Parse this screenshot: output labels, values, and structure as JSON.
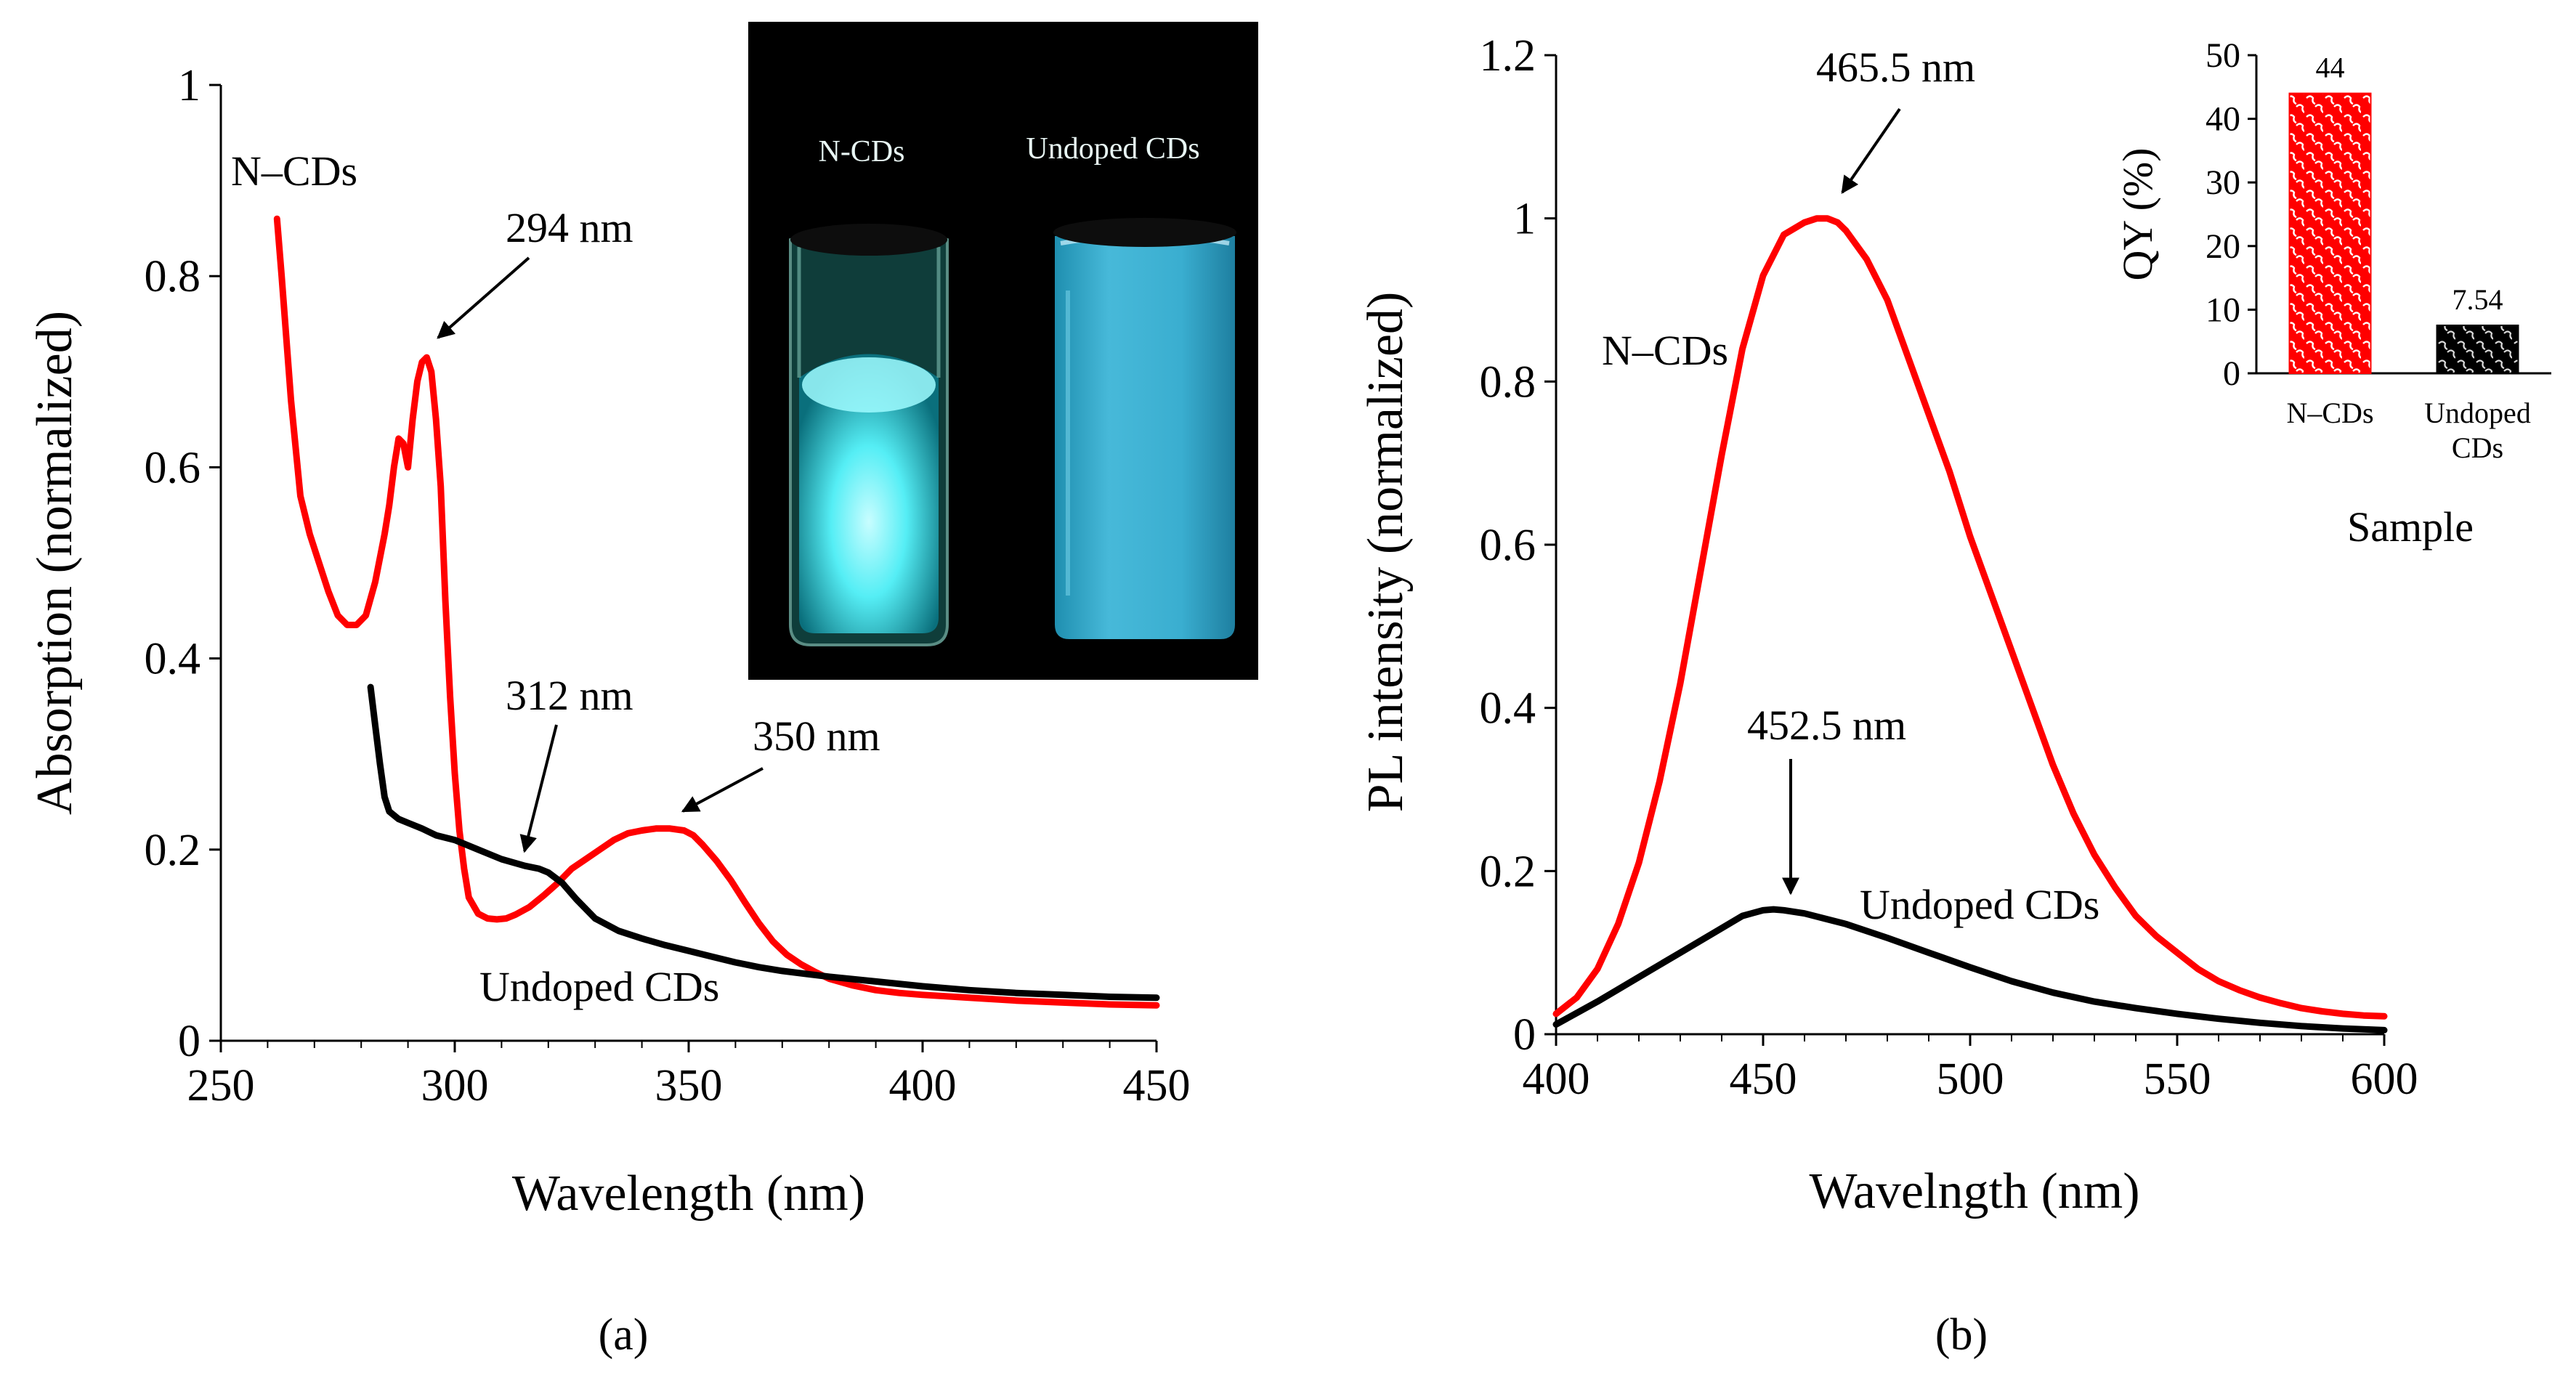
{
  "colors": {
    "ncds": "#ff0000",
    "undoped": "#000000",
    "vial_glow": "#3ee6f0",
    "vial_undoped": "#2aa8c8",
    "photo_bg": "#000000"
  },
  "chart_data": [
    {
      "panel": "a",
      "type": "line",
      "xlabel": "Wavelength (nm)",
      "ylabel": "Absorption (normalized)",
      "xlim": [
        250,
        450
      ],
      "ylim": [
        0,
        1
      ],
      "xticks": [
        250,
        300,
        350,
        400,
        450
      ],
      "yticks": [
        0,
        0.2,
        0.4,
        0.6,
        0.8,
        1
      ],
      "ytick_labels": [
        "0",
        "0.2",
        "0.4",
        "0.6",
        "0.8",
        "1"
      ],
      "grid": false,
      "series": [
        {
          "name": "N–CDs",
          "color": "#ff0000",
          "x": [
            262,
            263,
            265,
            267,
            269,
            271,
            273,
            275,
            277,
            279,
            281,
            283,
            285,
            286,
            287,
            288,
            289,
            290,
            291,
            292,
            293,
            294,
            295,
            296,
            297,
            298,
            299,
            300,
            301,
            302,
            303,
            305,
            307,
            309,
            311,
            313,
            316,
            319,
            322,
            325,
            328,
            331,
            334,
            337,
            340,
            343,
            346,
            349,
            351,
            353,
            356,
            359,
            362,
            365,
            368,
            371,
            374,
            377,
            380,
            385,
            390,
            395,
            400,
            410,
            420,
            430,
            440,
            450
          ],
          "y": [
            0.86,
            0.8,
            0.67,
            0.57,
            0.53,
            0.5,
            0.47,
            0.445,
            0.435,
            0.435,
            0.445,
            0.48,
            0.53,
            0.56,
            0.6,
            0.63,
            0.625,
            0.6,
            0.65,
            0.69,
            0.71,
            0.715,
            0.7,
            0.65,
            0.58,
            0.46,
            0.36,
            0.28,
            0.22,
            0.18,
            0.15,
            0.133,
            0.128,
            0.127,
            0.128,
            0.132,
            0.14,
            0.152,
            0.165,
            0.18,
            0.19,
            0.2,
            0.21,
            0.217,
            0.22,
            0.222,
            0.222,
            0.22,
            0.215,
            0.205,
            0.188,
            0.168,
            0.145,
            0.123,
            0.104,
            0.09,
            0.08,
            0.072,
            0.065,
            0.058,
            0.053,
            0.05,
            0.048,
            0.045,
            0.042,
            0.04,
            0.038,
            0.037
          ]
        },
        {
          "name": "Undoped CDs",
          "color": "#000000",
          "x": [
            282,
            283,
            284,
            285,
            286,
            288,
            290,
            293,
            296,
            300,
            305,
            310,
            315,
            318,
            320,
            323,
            326,
            330,
            335,
            340,
            345,
            350,
            355,
            360,
            365,
            370,
            375,
            380,
            390,
            400,
            410,
            420,
            430,
            440,
            450
          ],
          "y": [
            0.37,
            0.33,
            0.29,
            0.255,
            0.24,
            0.232,
            0.228,
            0.222,
            0.215,
            0.21,
            0.2,
            0.19,
            0.183,
            0.18,
            0.176,
            0.165,
            0.148,
            0.128,
            0.115,
            0.107,
            0.1,
            0.094,
            0.088,
            0.082,
            0.077,
            0.073,
            0.07,
            0.067,
            0.062,
            0.057,
            0.053,
            0.05,
            0.048,
            0.046,
            0.045
          ]
        }
      ],
      "series_labels": {
        "ncds": "N–CDs",
        "undoped": "Undoped CDs"
      },
      "annotations": [
        "294 nm",
        "312 nm",
        "350 nm"
      ],
      "inset_photo": {
        "labels": [
          "N-CDs",
          "Undoped CDs"
        ]
      },
      "caption": "(a)"
    },
    {
      "panel": "b",
      "type": "line",
      "xlabel": "Wavelngth (nm)",
      "ylabel": "PL intensity (normalized)",
      "xlim": [
        400,
        600
      ],
      "ylim": [
        0,
        1.2
      ],
      "xticks": [
        400,
        450,
        500,
        550,
        600
      ],
      "yticks": [
        0,
        0.2,
        0.4,
        0.6,
        0.8,
        1,
        1.2
      ],
      "ytick_labels": [
        "0",
        "0.2",
        "0.4",
        "0.6",
        "0.8",
        "1",
        "1.2"
      ],
      "grid": false,
      "series": [
        {
          "name": "N–CDs",
          "color": "#ff0000",
          "x": [
            400,
            405,
            410,
            415,
            420,
            425,
            430,
            435,
            440,
            445,
            450,
            455,
            460,
            463,
            465.5,
            468,
            470,
            475,
            480,
            485,
            490,
            495,
            500,
            505,
            510,
            515,
            520,
            525,
            530,
            535,
            540,
            545,
            550,
            555,
            560,
            565,
            570,
            575,
            580,
            585,
            590,
            595,
            600
          ],
          "y": [
            0.025,
            0.045,
            0.08,
            0.135,
            0.21,
            0.31,
            0.43,
            0.57,
            0.71,
            0.84,
            0.93,
            0.98,
            0.995,
            1.0,
            1.0,
            0.995,
            0.985,
            0.95,
            0.9,
            0.83,
            0.76,
            0.69,
            0.61,
            0.54,
            0.47,
            0.4,
            0.33,
            0.27,
            0.22,
            0.18,
            0.145,
            0.12,
            0.1,
            0.08,
            0.065,
            0.054,
            0.045,
            0.038,
            0.032,
            0.028,
            0.025,
            0.023,
            0.022
          ]
        },
        {
          "name": "Undoped CDs",
          "color": "#000000",
          "x": [
            400,
            410,
            420,
            430,
            440,
            445,
            450,
            452.5,
            455,
            460,
            470,
            480,
            490,
            500,
            510,
            520,
            530,
            540,
            550,
            560,
            570,
            580,
            590,
            600
          ],
          "y": [
            0.012,
            0.04,
            0.07,
            0.1,
            0.13,
            0.145,
            0.152,
            0.153,
            0.152,
            0.148,
            0.135,
            0.118,
            0.1,
            0.082,
            0.065,
            0.051,
            0.04,
            0.032,
            0.025,
            0.019,
            0.014,
            0.01,
            0.007,
            0.005
          ]
        }
      ],
      "series_labels": {
        "ncds": "N–CDs",
        "undoped": "Undoped CDs"
      },
      "annotations": [
        "465.5 nm",
        "452.5 nm"
      ],
      "caption": "(b)"
    },
    {
      "panel": "b-inset",
      "type": "bar",
      "categories": [
        "N–CDs",
        "Undoped\nCDs"
      ],
      "category_lines": [
        [
          "N–CDs"
        ],
        [
          "Undoped",
          "CDs"
        ]
      ],
      "values": [
        44,
        7.54
      ],
      "value_labels": [
        "44",
        "7.54"
      ],
      "bar_colors": [
        "#ff0000",
        "#000000"
      ],
      "xlabel": "Sample",
      "ylabel": "QY (%)",
      "ylim": [
        0,
        50
      ],
      "yticks": [
        0,
        10,
        20,
        30,
        40,
        50
      ],
      "ytick_labels": [
        "0",
        "10",
        "20",
        "30",
        "40",
        "50"
      ]
    }
  ]
}
